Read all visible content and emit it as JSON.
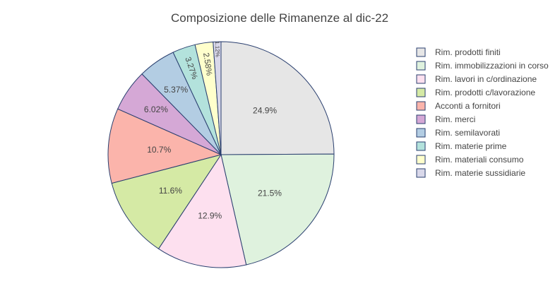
{
  "chart_data": {
    "type": "pie",
    "title": "Composizione delle Rimanenze al dic-22",
    "legend_position": "right",
    "slice_border_color": "#2a3f6f",
    "slices": [
      {
        "label": "Rim. prodotti finiti",
        "value": 24.9,
        "text": "24.9%",
        "color": "#e6e6e6"
      },
      {
        "label": "Rim. immobilizzazioni in corso",
        "value": 21.5,
        "text": "21.5%",
        "color": "#dff2de"
      },
      {
        "label": "Rim. lavori in c/ordinazione",
        "value": 12.9,
        "text": "12.9%",
        "color": "#fde0ef"
      },
      {
        "label": "Rim. prodotti c/lavorazione",
        "value": 11.6,
        "text": "11.6%",
        "color": "#d5eaa5"
      },
      {
        "label": "Acconti a fornitori",
        "value": 10.7,
        "text": "10.7%",
        "color": "#fbb4ab"
      },
      {
        "label": "Rim. merci",
        "value": 6.02,
        "text": "6.02%",
        "color": "#d5a8d6"
      },
      {
        "label": "Rim. semilavorati",
        "value": 5.37,
        "text": "5.37%",
        "color": "#b3cde3"
      },
      {
        "label": "Rim. materie prime",
        "value": 3.27,
        "text": "3.27%",
        "color": "#b3e2dc"
      },
      {
        "label": "Rim. materiali consumo",
        "value": 2.58,
        "text": "2.58%",
        "color": "#ffffcc"
      },
      {
        "label": "Rim. materie sussidiarie",
        "value": 1.12,
        "text": "1.12%",
        "color": "#d9d8ea"
      }
    ]
  }
}
